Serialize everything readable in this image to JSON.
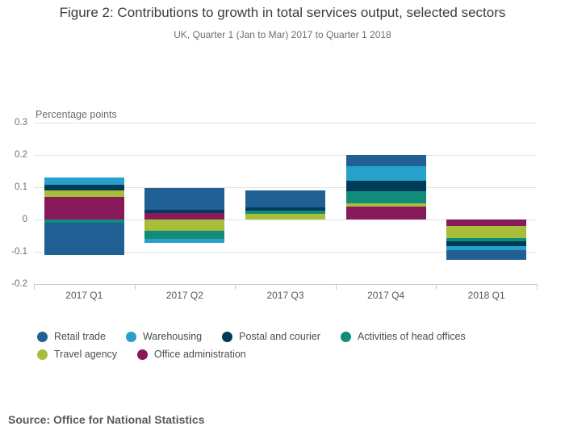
{
  "source": {
    "text": "Source: Office for National Statistics"
  },
  "chart_data": {
    "type": "bar",
    "stacked": true,
    "title": "Figure 2: Contributions to growth in total services output, selected sectors",
    "subtitle": "UK, Quarter 1 (Jan to Mar) 2017 to Quarter 1 2018",
    "ylabel": "Percentage points",
    "xlabel": "",
    "categories": [
      "2017 Q1",
      "2017 Q2",
      "2017 Q3",
      "2017 Q4",
      "2018 Q1"
    ],
    "series": [
      {
        "name": "Retail trade",
        "color": "#206095",
        "values": [
          -0.1,
          0.067,
          0.052,
          0.033,
          -0.03
        ]
      },
      {
        "name": "Warehousing",
        "color": "#27A0CC",
        "values": [
          0.021,
          -0.012,
          0.0,
          0.045,
          -0.012
        ]
      },
      {
        "name": "Postal and courier",
        "color": "#003C57",
        "values": [
          0.019,
          0.011,
          0.01,
          0.033,
          -0.014
        ]
      },
      {
        "name": "Activities of head offices",
        "color": "#118C7B",
        "values": [
          -0.011,
          -0.024,
          0.009,
          0.037,
          -0.01
        ]
      },
      {
        "name": "Travel agency",
        "color": "#A8BD3A",
        "values": [
          0.018,
          -0.036,
          0.018,
          0.012,
          -0.039
        ]
      },
      {
        "name": "Office administration",
        "color": "#871A5B",
        "values": [
          0.071,
          0.02,
          0.0,
          0.039,
          -0.019
        ]
      }
    ],
    "ylim": [
      -0.2,
      0.3
    ],
    "yticks": [
      0.3,
      0.2,
      0.1,
      0,
      -0.1,
      -0.2
    ],
    "ytick_labels": [
      "0.3",
      "0.2",
      "0.1",
      "0",
      "-0.1",
      "-0.2"
    ],
    "grid": true,
    "legend_position": "bottom",
    "stack_order_from_zero": [
      "Office administration",
      "Travel agency",
      "Activities of head offices",
      "Postal and courier",
      "Warehousing",
      "Retail trade"
    ],
    "colors": {
      "gridline": "#e2e2e2",
      "axis": "#c3ccd3",
      "tick_text": "#707070",
      "category_text": "#595959"
    }
  }
}
